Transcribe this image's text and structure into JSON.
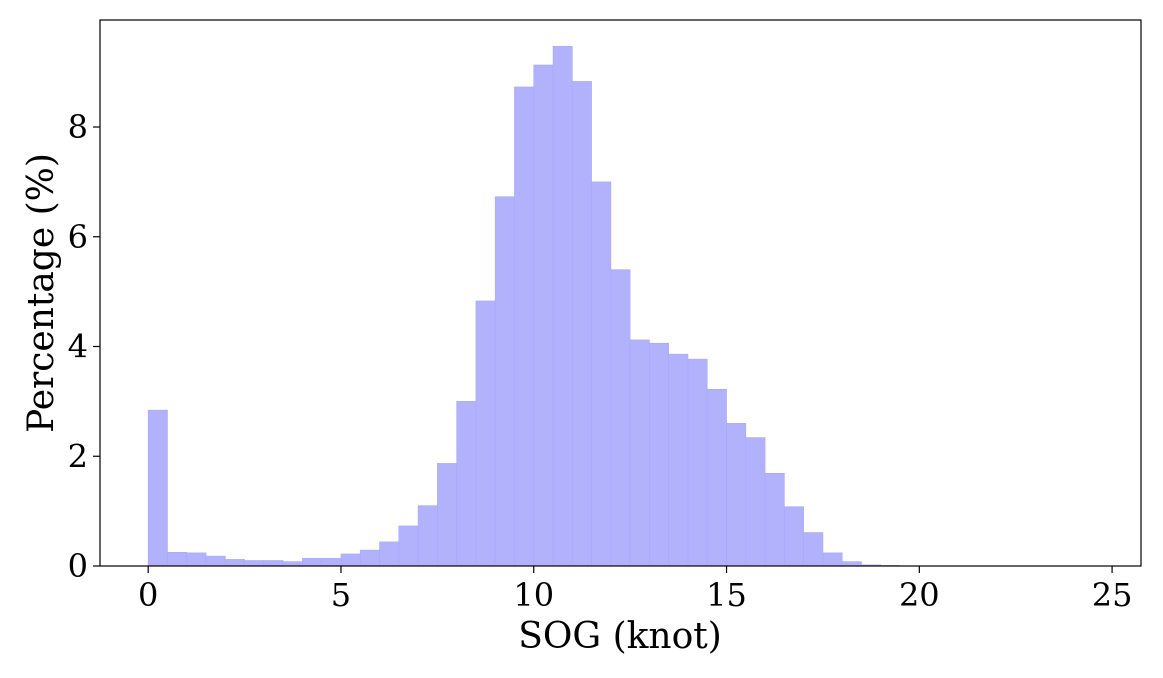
{
  "chart_data": {
    "type": "bar",
    "subtype": "histogram",
    "xlabel": "SOG (knot)",
    "ylabel": "Percentage (%)",
    "xlim": [
      -1.25,
      25.75
    ],
    "ylim": [
      0,
      9.95
    ],
    "x_ticks": [
      0,
      5,
      10,
      15,
      20,
      25
    ],
    "y_ticks": [
      0,
      2,
      4,
      6,
      8
    ],
    "x_tick_labels": [
      "0",
      "5",
      "10",
      "15",
      "20",
      "25"
    ],
    "y_tick_labels": [
      "0",
      "2",
      "4",
      "6",
      "8"
    ],
    "bin_width": 0.5,
    "bin_edges_start": [
      0,
      0.5,
      1,
      1.5,
      2,
      2.5,
      3,
      3.5,
      4,
      4.5,
      5,
      5.5,
      6,
      6.5,
      7,
      7.5,
      8,
      8.5,
      9,
      9.5,
      10,
      10.5,
      11,
      11.5,
      12,
      12.5,
      13,
      13.5,
      14,
      14.5,
      15,
      15.5,
      16,
      16.5,
      17,
      17.5,
      18,
      18.5,
      19,
      19.5,
      20,
      20.5,
      21,
      21.5,
      22,
      22.5,
      23,
      23.5,
      24,
      24.5
    ],
    "values": [
      2.84,
      0.25,
      0.24,
      0.18,
      0.12,
      0.1,
      0.1,
      0.08,
      0.14,
      0.14,
      0.22,
      0.29,
      0.44,
      0.73,
      1.1,
      1.87,
      3.0,
      4.83,
      6.73,
      8.73,
      9.13,
      9.47,
      8.83,
      7.0,
      5.4,
      4.12,
      4.06,
      3.86,
      3.77,
      3.22,
      2.6,
      2.34,
      1.69,
      1.08,
      0.61,
      0.24,
      0.08,
      0.02,
      0.01,
      0.0,
      0.0,
      0.0,
      0.0,
      0.0,
      0.0,
      0.0,
      0.0,
      0.0,
      0.0,
      0.0
    ],
    "bar_color": "#b1b1fc",
    "grid": false,
    "legend": "none"
  }
}
